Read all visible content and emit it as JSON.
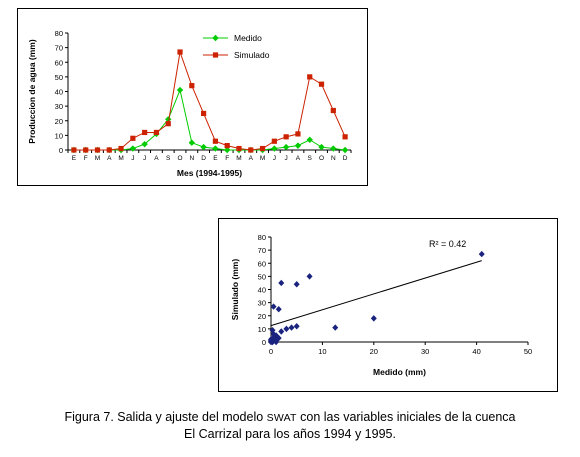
{
  "chart_data": [
    {
      "type": "line",
      "ylabel": "Produccion de agua (mm)",
      "xlabel": "Mes (1994-1995)",
      "ylim": [
        0,
        80
      ],
      "yticks": [
        0,
        10,
        20,
        30,
        40,
        50,
        60,
        70,
        80
      ],
      "categories": [
        "E",
        "F",
        "M",
        "A",
        "M",
        "J",
        "J",
        "A",
        "S",
        "O",
        "N",
        "D",
        "E",
        "F",
        "M",
        "A",
        "M",
        "J",
        "J",
        "A",
        "S",
        "O",
        "N",
        "D"
      ],
      "legend_position": "top-right",
      "grid": false,
      "series": [
        {
          "name": "Medido",
          "color": "#00cc00",
          "marker": "diamond",
          "values": [
            0,
            0,
            0,
            0,
            0,
            1,
            4,
            11,
            21,
            41,
            5,
            2,
            1,
            0,
            0,
            0,
            0,
            1,
            2,
            3,
            7,
            2,
            1,
            0
          ]
        },
        {
          "name": "Simulado",
          "color": "#cc2200",
          "marker": "square",
          "values": [
            0,
            0,
            0,
            0,
            1,
            8,
            12,
            12,
            18,
            67,
            44,
            25,
            6,
            3,
            1,
            0,
            1,
            6,
            9,
            11,
            50,
            45,
            27,
            9
          ]
        }
      ]
    },
    {
      "type": "scatter",
      "xlabel": "Medido (mm)",
      "ylabel": "Simulado (mm)",
      "xlim": [
        0,
        50
      ],
      "ylim": [
        0,
        80
      ],
      "xticks": [
        0,
        10,
        20,
        30,
        40,
        50
      ],
      "yticks": [
        0,
        10,
        20,
        30,
        40,
        50,
        60,
        70,
        80
      ],
      "grid": false,
      "marker_color": "#1a237e",
      "annotation": "R² = 0.42",
      "points": [
        [
          0,
          0
        ],
        [
          0,
          1
        ],
        [
          0,
          2
        ],
        [
          0.3,
          0
        ],
        [
          0.5,
          1
        ],
        [
          1,
          0
        ],
        [
          0.4,
          3
        ],
        [
          0.5,
          6
        ],
        [
          1,
          5
        ],
        [
          1.5,
          3
        ],
        [
          0.3,
          9
        ],
        [
          1.2,
          2
        ],
        [
          0.5,
          27
        ],
        [
          1.5,
          25
        ],
        [
          2,
          8
        ],
        [
          2,
          45
        ],
        [
          3,
          10
        ],
        [
          4,
          11
        ],
        [
          5,
          12
        ],
        [
          5,
          44
        ],
        [
          7.5,
          50
        ],
        [
          12.5,
          11
        ],
        [
          20,
          18
        ],
        [
          41,
          67
        ]
      ],
      "trendline": {
        "x": [
          0,
          41
        ],
        "y": [
          12.5,
          62
        ]
      }
    }
  ],
  "caption": {
    "line1_before": "Figura 7. Salida y ajuste del modelo ",
    "line1_sc": "SWAT",
    "line1_after": " con las variables iniciales de la cuenca",
    "line2": "El Carrizal para los años 1994 y 1995."
  }
}
